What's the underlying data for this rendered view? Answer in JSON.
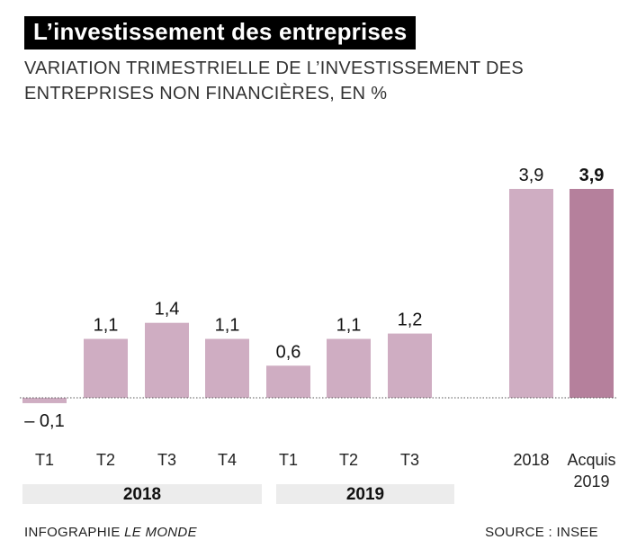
{
  "title": "L’investissement des entreprises",
  "subtitle": "VARIATION TRIMESTRIELLE DE L’INVESTISSEMENT DES ENTREPRISES NON FINANCIÈRES, EN %",
  "footer": {
    "credit_prefix": "INFOGRAPHIE",
    "credit_name": "LE MONDE",
    "source": "SOURCE : INSEE"
  },
  "colors": {
    "bar": "#cfadc2",
    "bar_highlight": "#b5809c",
    "group_band": "#ececec",
    "zero_line": "#555555"
  },
  "chart_data": {
    "type": "bar",
    "title": "L’investissement des entreprises",
    "subtitle": "VARIATION TRIMESTRIELLE DE L’INVESTISSEMENT DES ENTREPRISES NON FINANCIÈRES, EN %",
    "ylim": [
      -0.2,
      4.0
    ],
    "grid": false,
    "bars": [
      {
        "category": "T1",
        "group": "2018",
        "value": -0.1,
        "label": "– 0,1",
        "highlight": false
      },
      {
        "category": "T2",
        "group": "2018",
        "value": 1.1,
        "label": "1,1",
        "highlight": false
      },
      {
        "category": "T3",
        "group": "2018",
        "value": 1.4,
        "label": "1,4",
        "highlight": false
      },
      {
        "category": "T4",
        "group": "2018",
        "value": 1.1,
        "label": "1,1",
        "highlight": false
      },
      {
        "category": "T1",
        "group": "2019",
        "value": 0.6,
        "label": "0,6",
        "highlight": false
      },
      {
        "category": "T2",
        "group": "2019",
        "value": 1.1,
        "label": "1,1",
        "highlight": false
      },
      {
        "category": "T3",
        "group": "2019",
        "value": 1.2,
        "label": "1,2",
        "highlight": false
      },
      {
        "category": "2018",
        "group": "",
        "value": 3.9,
        "label": "3,9",
        "highlight": false
      },
      {
        "category": "Acquis 2019",
        "group": "",
        "value": 3.9,
        "label": "3,9",
        "highlight": true
      }
    ],
    "groups": [
      "2018",
      "2019"
    ]
  }
}
